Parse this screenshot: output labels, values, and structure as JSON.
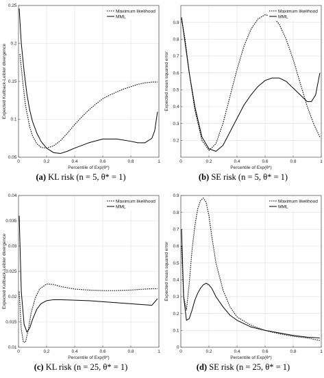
{
  "figure": {
    "panels": [
      {
        "caption": {
          "letter": "(a)",
          "text": "KL risk (n = 5, θ* = 1)"
        },
        "chart_data": {
          "type": "line",
          "xlabel": "Percentile of Exp(θ*)",
          "ylabel": "Expected Kullback-Leibler divergence",
          "xlim": [
            0,
            1
          ],
          "ylim": [
            0.05,
            0.25
          ],
          "xticks": [
            "0",
            "0.2",
            "0.4",
            "0.6",
            "0.8",
            "1"
          ],
          "yticks": [
            "0.05",
            "0.1",
            "0.15",
            "0.2",
            "0.25"
          ],
          "grid": true,
          "legend": {
            "position": "top-right"
          },
          "series": [
            {
              "name": "Maximum likelihood",
              "style": "dotted",
              "x": [
                0.01,
                0.03,
                0.05,
                0.08,
                0.1,
                0.13,
                0.16,
                0.2,
                0.25,
                0.3,
                0.35,
                0.4,
                0.45,
                0.5,
                0.55,
                0.6,
                0.65,
                0.7,
                0.75,
                0.8,
                0.85,
                0.9,
                0.95,
                0.99
              ],
              "y": [
                0.186,
                0.15,
                0.118,
                0.09,
                0.078,
                0.068,
                0.063,
                0.062,
                0.065,
                0.072,
                0.082,
                0.093,
                0.103,
                0.112,
                0.12,
                0.127,
                0.132,
                0.136,
                0.14,
                0.143,
                0.146,
                0.148,
                0.149,
                0.149
              ]
            },
            {
              "name": "MML",
              "style": "solid",
              "x": [
                0.005,
                0.02,
                0.04,
                0.06,
                0.08,
                0.1,
                0.13,
                0.16,
                0.2,
                0.25,
                0.3,
                0.35,
                0.4,
                0.5,
                0.6,
                0.7,
                0.8,
                0.85,
                0.9,
                0.95,
                0.97,
                0.99
              ],
              "y": [
                0.246,
                0.2,
                0.163,
                0.133,
                0.112,
                0.097,
                0.082,
                0.071,
                0.062,
                0.056,
                0.055,
                0.058,
                0.062,
                0.069,
                0.074,
                0.074,
                0.071,
                0.069,
                0.069,
                0.075,
                0.085,
                0.11
              ]
            }
          ]
        }
      },
      {
        "caption": {
          "letter": "(b)",
          "text": "SE risk (n = 5, θ* = 1)"
        },
        "chart_data": {
          "type": "line",
          "xlabel": "Percentile of Exp(θ*)",
          "ylabel": "Expected mean squared error",
          "xlim": [
            0,
            1
          ],
          "ylim": [
            0.1,
            1.0
          ],
          "xticks": [
            "0",
            "0.2",
            "0.4",
            "0.6",
            "0.8",
            "1"
          ],
          "yticks": [
            "0.2",
            "0.3",
            "0.4",
            "0.5",
            "0.6",
            "0.7",
            "0.8",
            "0.9"
          ],
          "grid": true,
          "legend": {
            "position": "top-right"
          },
          "series": [
            {
              "name": "Maximum likelihood",
              "style": "dotted",
              "x": [
                0.005,
                0.03,
                0.06,
                0.1,
                0.15,
                0.2,
                0.25,
                0.3,
                0.35,
                0.4,
                0.45,
                0.5,
                0.55,
                0.6,
                0.65,
                0.7,
                0.75,
                0.8,
                0.85,
                0.9,
                0.95,
                0.99
              ],
              "y": [
                0.92,
                0.8,
                0.6,
                0.38,
                0.2,
                0.14,
                0.18,
                0.3,
                0.46,
                0.62,
                0.76,
                0.86,
                0.92,
                0.945,
                0.935,
                0.89,
                0.8,
                0.68,
                0.54,
                0.4,
                0.29,
                0.22
              ]
            },
            {
              "name": "MML",
              "style": "solid",
              "x": [
                0.005,
                0.03,
                0.06,
                0.1,
                0.15,
                0.2,
                0.25,
                0.3,
                0.35,
                0.4,
                0.45,
                0.5,
                0.55,
                0.6,
                0.65,
                0.7,
                0.75,
                0.8,
                0.85,
                0.9,
                0.93,
                0.96,
                0.99
              ],
              "y": [
                0.93,
                0.78,
                0.6,
                0.4,
                0.22,
                0.15,
                0.135,
                0.17,
                0.25,
                0.33,
                0.41,
                0.47,
                0.52,
                0.555,
                0.57,
                0.57,
                0.55,
                0.51,
                0.47,
                0.43,
                0.43,
                0.47,
                0.6
              ]
            }
          ]
        }
      },
      {
        "caption": {
          "letter": "(c)",
          "text": "KL risk (n = 25, θ* = 1)"
        },
        "chart_data": {
          "type": "line",
          "xlabel": "Percentile of Exp(θ*)",
          "ylabel": "Expected Kullback-Leibler divergence",
          "xlim": [
            0,
            1
          ],
          "ylim": [
            0.01,
            0.04
          ],
          "xticks": [
            "0",
            "0.2",
            "0.4",
            "0.6",
            "0.8",
            "1"
          ],
          "yticks": [
            "0.01",
            "0.015",
            "0.02",
            "0.025",
            "0.03",
            "0.035",
            "0.04"
          ],
          "grid": true,
          "legend": {
            "position": "top-right"
          },
          "series": [
            {
              "name": "Maximum likelihood",
              "style": "dotted",
              "x": [
                0.005,
                0.02,
                0.035,
                0.05,
                0.07,
                0.09,
                0.12,
                0.15,
                0.2,
                0.25,
                0.3,
                0.4,
                0.5,
                0.6,
                0.7,
                0.8,
                0.9,
                0.99
              ],
              "y": [
                0.021,
                0.0135,
                0.011,
                0.011,
                0.0135,
                0.0168,
                0.0198,
                0.0215,
                0.0225,
                0.0224,
                0.022,
                0.0215,
                0.0213,
                0.0212,
                0.0212,
                0.0213,
                0.0215,
                0.0216
              ]
            },
            {
              "name": "MML",
              "style": "solid",
              "x": [
                0.005,
                0.02,
                0.04,
                0.06,
                0.08,
                0.1,
                0.13,
                0.16,
                0.2,
                0.25,
                0.3,
                0.4,
                0.5,
                0.6,
                0.7,
                0.8,
                0.9,
                0.95,
                0.99
              ],
              "y": [
                0.036,
                0.021,
                0.0145,
                0.013,
                0.0138,
                0.0155,
                0.0175,
                0.0186,
                0.0192,
                0.0194,
                0.0194,
                0.0193,
                0.0192,
                0.019,
                0.0188,
                0.0186,
                0.0184,
                0.0183,
                0.0196
              ]
            }
          ]
        }
      },
      {
        "caption": {
          "letter": "(d)",
          "text": "SE risk (n = 25, θ* = 1)"
        },
        "chart_data": {
          "type": "line",
          "xlabel": "Percentile of Exp(θ*)",
          "ylabel": "Expected mean squared error",
          "xlim": [
            0,
            1
          ],
          "ylim": [
            0,
            0.9
          ],
          "xticks": [
            "0",
            "0.2",
            "0.4",
            "0.6",
            "0.8",
            "1"
          ],
          "yticks": [
            "0",
            "0.1",
            "0.2",
            "0.3",
            "0.4",
            "0.5",
            "0.6",
            "0.7",
            "0.8",
            "0.9"
          ],
          "grid": true,
          "legend": {
            "position": "top-right"
          },
          "series": [
            {
              "name": "Maximum likelihood",
              "style": "dotted",
              "x": [
                0.005,
                0.02,
                0.04,
                0.06,
                0.08,
                0.1,
                0.12,
                0.14,
                0.16,
                0.18,
                0.2,
                0.22,
                0.25,
                0.3,
                0.35,
                0.4,
                0.5,
                0.6,
                0.7,
                0.8,
                0.9,
                0.99
              ],
              "y": [
                0.6,
                0.3,
                0.22,
                0.38,
                0.58,
                0.72,
                0.82,
                0.87,
                0.885,
                0.86,
                0.78,
                0.66,
                0.5,
                0.34,
                0.24,
                0.18,
                0.13,
                0.1,
                0.08,
                0.065,
                0.055,
                0.04
              ]
            },
            {
              "name": "MML",
              "style": "solid",
              "x": [
                0.005,
                0.02,
                0.04,
                0.06,
                0.08,
                0.1,
                0.12,
                0.14,
                0.16,
                0.18,
                0.2,
                0.22,
                0.25,
                0.3,
                0.35,
                0.4,
                0.5,
                0.6,
                0.7,
                0.8,
                0.9,
                0.99
              ],
              "y": [
                0.7,
                0.3,
                0.16,
                0.17,
                0.22,
                0.28,
                0.32,
                0.35,
                0.37,
                0.38,
                0.37,
                0.35,
                0.3,
                0.24,
                0.19,
                0.16,
                0.12,
                0.1,
                0.085,
                0.07,
                0.06,
                0.055
              ]
            }
          ]
        }
      }
    ]
  }
}
